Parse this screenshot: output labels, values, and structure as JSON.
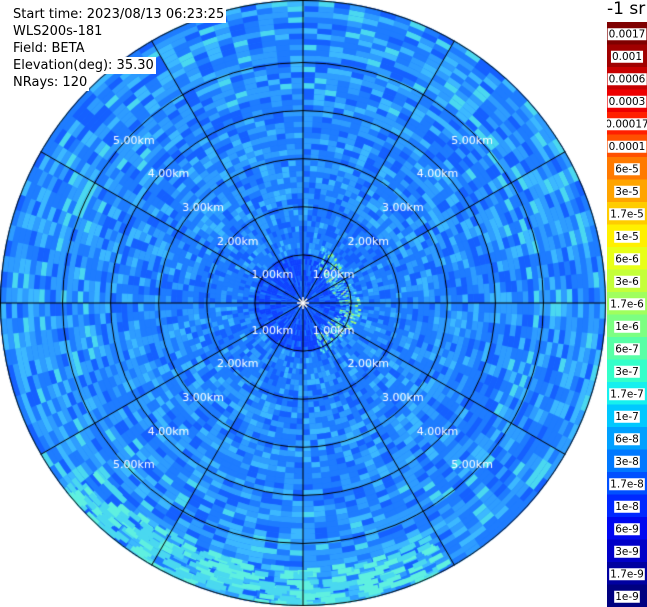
{
  "header": {
    "start_time": "Start time: 2023/08/13 06:23:25",
    "device": "WLS200s-181",
    "field": "Field: BETA",
    "elevation": "Elevation(deg): 35.30",
    "nrays": "NRays: 120"
  },
  "colorbar": {
    "unit": "-1 sr",
    "labels": [
      "0.0017",
      "0.001",
      "0.0006",
      "0.0003",
      "0.00017",
      "0.0001",
      "6e-5",
      "3e-5",
      "1.7e-5",
      "1e-5",
      "6e-6",
      "3e-6",
      "1.7e-6",
      "1e-6",
      "6e-7",
      "3e-7",
      "1.7e-7",
      "1e-7",
      "6e-8",
      "3e-8",
      "1.7e-8",
      "1e-8",
      "6e-9",
      "3e-9",
      "1.7e-9",
      "1e-9"
    ],
    "colors": [
      "#7f0000",
      "#a00000",
      "#c80000",
      "#ee0000",
      "#ff2000",
      "#ff5000",
      "#ff7a00",
      "#ffa400",
      "#ffcc00",
      "#fff000",
      "#e8ff18",
      "#c4ff3a",
      "#a0ff5e",
      "#7cff82",
      "#58ffa6",
      "#34ffca",
      "#16f0ee",
      "#00c8ff",
      "#00a0ff",
      "#0078ff",
      "#0050ff",
      "#0028ff",
      "#0008f0",
      "#0000c8",
      "#0000a0",
      "#000080"
    ]
  },
  "chart_data": {
    "type": "heatmap",
    "projection": "polar (PPI scan)",
    "field": "BETA",
    "elevation_deg": 35.3,
    "n_rays": 120,
    "range_rings_km": [
      1,
      2,
      3,
      4,
      5
    ],
    "range_ring_labels": [
      "1.00km",
      "2.00km",
      "3.00km",
      "4.00km",
      "5.00km"
    ],
    "max_range_km": 6.3,
    "radial_lines_deg": [
      0,
      30,
      60,
      90,
      120,
      150,
      180,
      210,
      240,
      270,
      300,
      330
    ],
    "value_range": [
      1e-09,
      0.0017
    ],
    "scale": "log",
    "dominant_values": "1e-8 to 6e-8 across most range gates",
    "features": [
      {
        "description": "stronger return arc",
        "range_km": [
          0.7,
          1.1
        ],
        "azimuth_deg": [
          20,
          160
        ],
        "value": "1e-7 to 3e-7"
      },
      {
        "description": "weak region near centre",
        "range_km": [
          0,
          0.9
        ],
        "value": "1e-9 to 1e-8"
      }
    ]
  }
}
